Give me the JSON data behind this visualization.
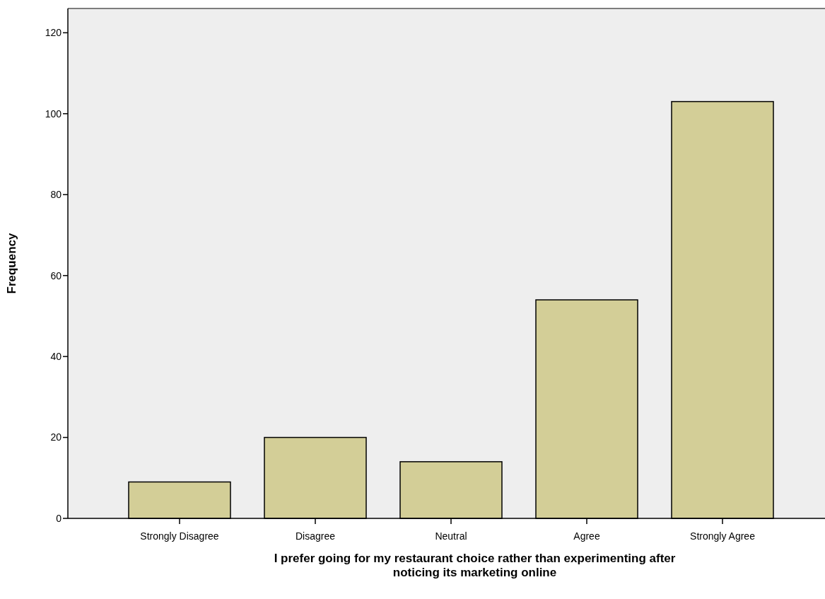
{
  "chart_data": {
    "type": "bar",
    "xlabel": "I prefer going for my restaurant choice rather than experimenting after noticing its marketing online",
    "ylabel": "Frequency",
    "categories": [
      "Strongly Disagree",
      "Disagree",
      "Neutral",
      "Agree",
      "Strongly Agree"
    ],
    "values": [
      9,
      20,
      14,
      54,
      103
    ],
    "color": "#d3ce97",
    "ylim": [
      0,
      126
    ],
    "yticks": [
      0,
      20,
      40,
      60,
      80,
      100,
      120
    ],
    "grid": false
  }
}
